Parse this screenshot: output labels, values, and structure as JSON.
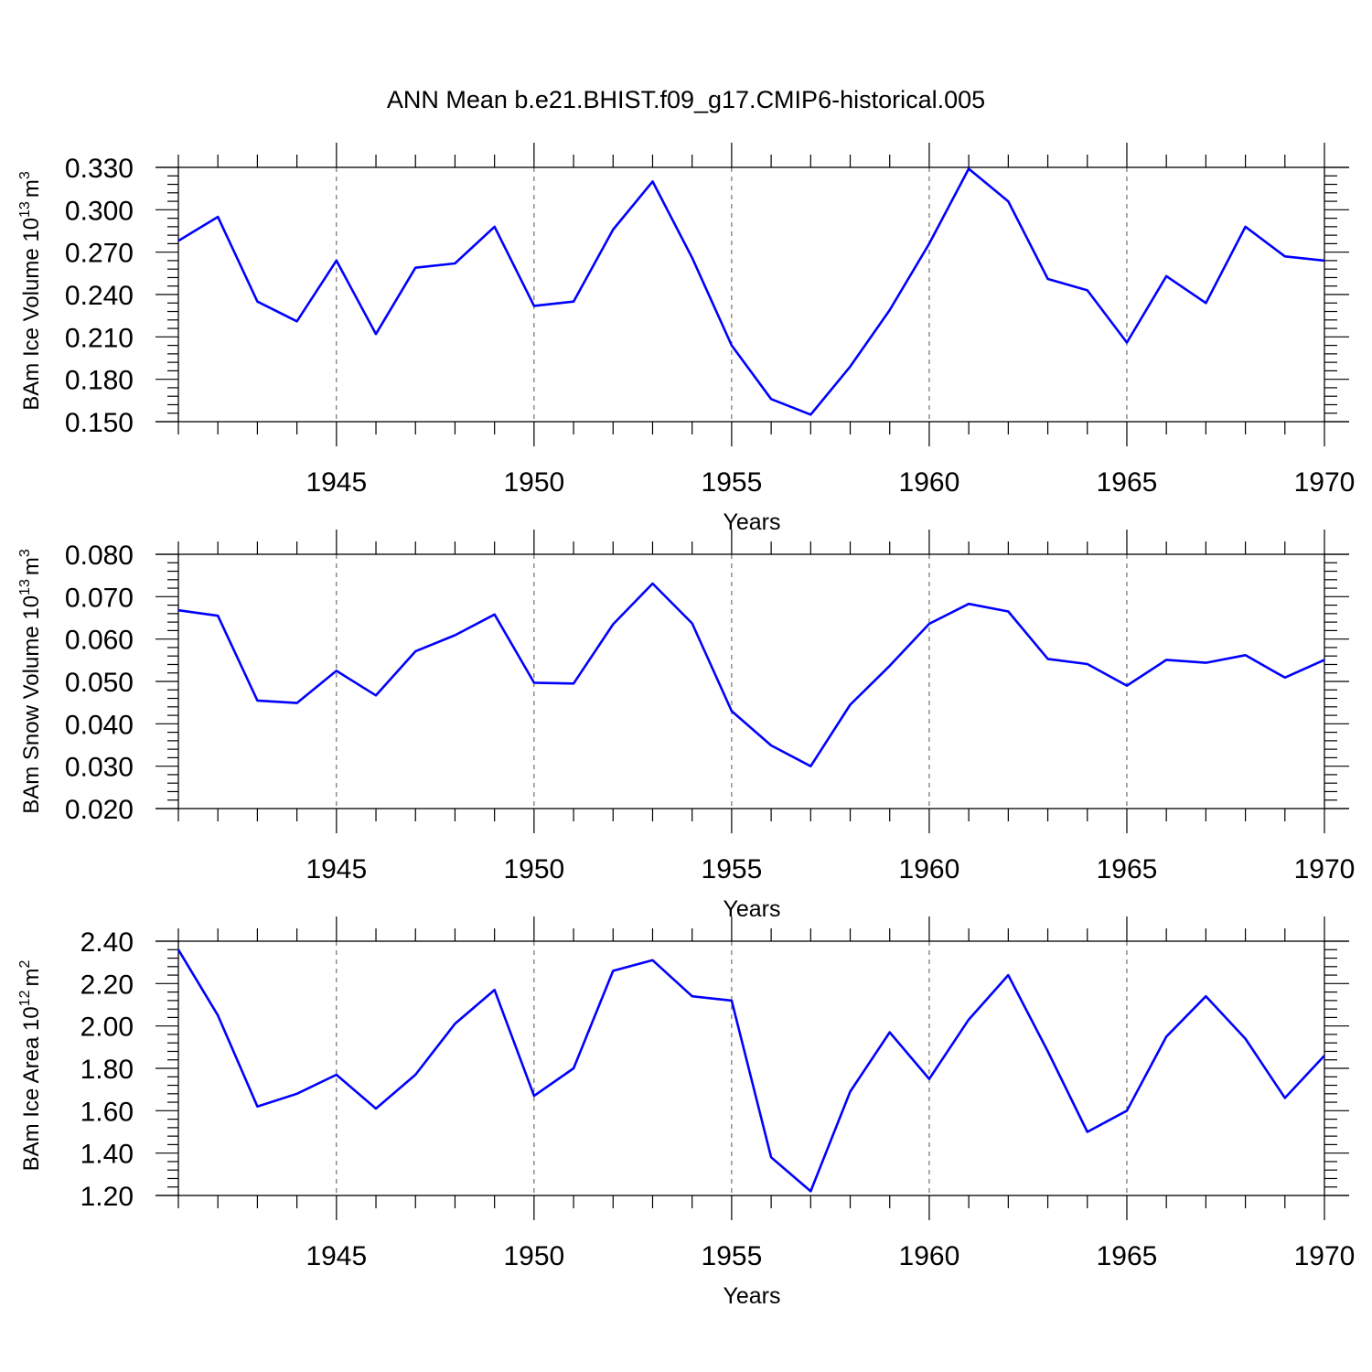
{
  "figure": {
    "title": "ANN Mean b.e21.BHIST.f09_g17.CMIP6-historical.005"
  },
  "colors": {
    "line": "#0000ff",
    "axis": "#000000",
    "grid": "#555555"
  },
  "chart_data": [
    {
      "type": "line",
      "title": "ANN Mean b.e21.BHIST.f09_g17.CMIP6-historical.005",
      "xlabel": "Years",
      "ylabel": "BAm Ice Volume 10",
      "ylabel_exponent": "13",
      "ylabel_unit": "m",
      "ylabel_unit_exponent": "3",
      "xlim": [
        1941,
        1970
      ],
      "ylim": [
        0.15,
        0.33
      ],
      "xticks": [
        1945,
        1950,
        1955,
        1960,
        1965,
        1970
      ],
      "xtick_labels": [
        "1945",
        "1950",
        "1955",
        "1960",
        "1965",
        "1970"
      ],
      "yticks": [
        0.15,
        0.18,
        0.21,
        0.24,
        0.27,
        0.3,
        0.33
      ],
      "ytick_labels": [
        "0.150",
        "0.180",
        "0.210",
        "0.240",
        "0.270",
        "0.300",
        "0.330"
      ],
      "grid": "dashed vertical at major x ticks",
      "x": [
        1941,
        1942,
        1943,
        1944,
        1945,
        1946,
        1947,
        1948,
        1949,
        1950,
        1951,
        1952,
        1953,
        1954,
        1955,
        1956,
        1957,
        1958,
        1959,
        1960,
        1961,
        1962,
        1963,
        1964,
        1965,
        1966,
        1967,
        1968,
        1969,
        1970
      ],
      "series": [
        {
          "name": "BAm Ice Volume",
          "values": [
            0.278,
            0.295,
            0.235,
            0.221,
            0.264,
            0.212,
            0.259,
            0.262,
            0.288,
            0.232,
            0.235,
            0.286,
            0.32,
            0.266,
            0.204,
            0.166,
            0.155,
            0.189,
            0.229,
            0.276,
            0.329,
            0.306,
            0.251,
            0.243,
            0.206,
            0.253,
            0.234,
            0.288,
            0.267,
            0.264
          ]
        }
      ]
    },
    {
      "type": "line",
      "xlabel": "Years",
      "ylabel": "BAm Snow Volume 10",
      "ylabel_exponent": "13",
      "ylabel_unit": "m",
      "ylabel_unit_exponent": "3",
      "xlim": [
        1941,
        1970
      ],
      "ylim": [
        0.02,
        0.08
      ],
      "xticks": [
        1945,
        1950,
        1955,
        1960,
        1965,
        1970
      ],
      "xtick_labels": [
        "1945",
        "1950",
        "1955",
        "1960",
        "1965",
        "1970"
      ],
      "yticks": [
        0.02,
        0.03,
        0.04,
        0.05,
        0.06,
        0.07,
        0.08
      ],
      "ytick_labels": [
        "0.020",
        "0.030",
        "0.040",
        "0.050",
        "0.060",
        "0.070",
        "0.080"
      ],
      "grid": "dashed vertical at major x ticks",
      "x": [
        1941,
        1942,
        1943,
        1944,
        1945,
        1946,
        1947,
        1948,
        1949,
        1950,
        1951,
        1952,
        1953,
        1954,
        1955,
        1956,
        1957,
        1958,
        1959,
        1960,
        1961,
        1962,
        1963,
        1964,
        1965,
        1966,
        1967,
        1968,
        1969,
        1970
      ],
      "series": [
        {
          "name": "BAm Snow Volume",
          "values": [
            0.0668,
            0.0655,
            0.0455,
            0.0449,
            0.0525,
            0.0467,
            0.0571,
            0.0609,
            0.0658,
            0.0497,
            0.0495,
            0.0635,
            0.0731,
            0.0637,
            0.043,
            0.0349,
            0.03,
            0.0445,
            0.0537,
            0.0636,
            0.0683,
            0.0665,
            0.0553,
            0.0541,
            0.049,
            0.0551,
            0.0544,
            0.0562,
            0.0509,
            0.0551
          ]
        }
      ]
    },
    {
      "type": "line",
      "xlabel": "Years",
      "ylabel": "BAm Ice Area 10",
      "ylabel_exponent": "12",
      "ylabel_unit": "m",
      "ylabel_unit_exponent": "2",
      "xlim": [
        1941,
        1970
      ],
      "ylim": [
        1.2,
        2.4
      ],
      "xticks": [
        1945,
        1950,
        1955,
        1960,
        1965,
        1970
      ],
      "xtick_labels": [
        "1945",
        "1950",
        "1955",
        "1960",
        "1965",
        "1970"
      ],
      "yticks": [
        1.2,
        1.4,
        1.6,
        1.8,
        2.0,
        2.2,
        2.4
      ],
      "ytick_labels": [
        "1.20",
        "1.40",
        "1.60",
        "1.80",
        "2.00",
        "2.20",
        "2.40"
      ],
      "grid": "dashed vertical at major x ticks",
      "x": [
        1941,
        1942,
        1943,
        1944,
        1945,
        1946,
        1947,
        1948,
        1949,
        1950,
        1951,
        1952,
        1953,
        1954,
        1955,
        1956,
        1957,
        1958,
        1959,
        1960,
        1961,
        1962,
        1963,
        1964,
        1965,
        1966,
        1967,
        1968,
        1969,
        1970
      ],
      "series": [
        {
          "name": "BAm Ice Area",
          "values": [
            2.36,
            2.05,
            1.62,
            1.68,
            1.77,
            1.61,
            1.77,
            2.01,
            2.17,
            1.67,
            1.8,
            2.26,
            2.31,
            2.14,
            2.12,
            1.38,
            1.22,
            1.69,
            1.97,
            1.75,
            2.03,
            2.24,
            1.88,
            1.5,
            1.6,
            1.95,
            2.14,
            1.94,
            1.66,
            1.86
          ]
        }
      ]
    }
  ]
}
